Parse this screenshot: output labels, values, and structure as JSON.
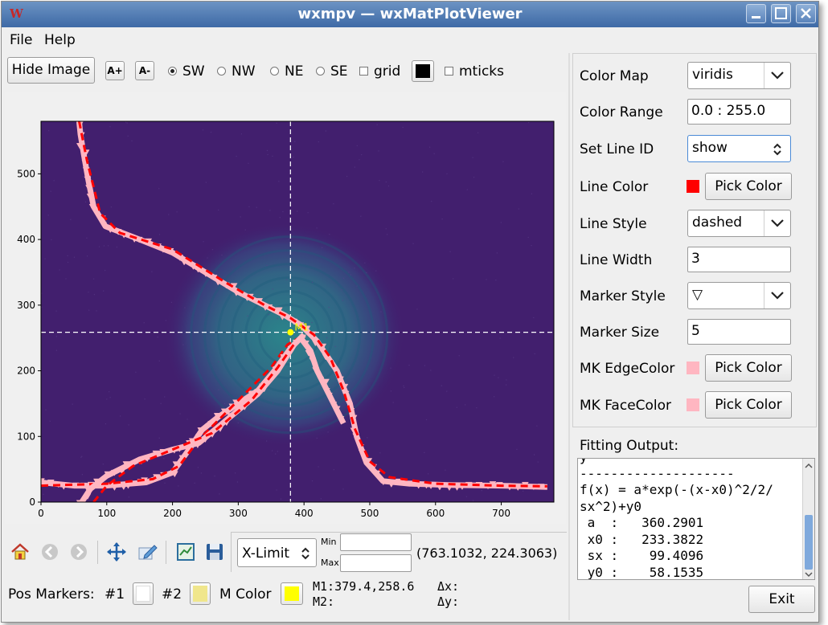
{
  "window": {
    "title": "wxmpv — wxMatPlotViewer",
    "app_icon": "W"
  },
  "menu": [
    "File",
    "Help"
  ],
  "toolbar": {
    "hide_image": "Hide Image",
    "font_up": "A+",
    "font_down": "A-",
    "origin_options": [
      {
        "label": "SW",
        "selected": true
      },
      {
        "label": "NW",
        "selected": false
      },
      {
        "label": "NE",
        "selected": false
      },
      {
        "label": "SE",
        "selected": false
      }
    ],
    "grid_label": "grid",
    "grid_checked": false,
    "grid_color": "#000000",
    "mticks_label": "mticks",
    "mticks_checked": false
  },
  "settings": {
    "color_map": {
      "label": "Color Map",
      "value": "viridis"
    },
    "color_range": {
      "label": "Color Range",
      "value": "0.0 : 255.0"
    },
    "set_line_id": {
      "label": "Set Line ID",
      "value": "show"
    },
    "line_color": {
      "label": "Line Color",
      "color": "#ff0000",
      "button": "Pick Color"
    },
    "line_style": {
      "label": "Line Style",
      "value": "dashed"
    },
    "line_width": {
      "label": "Line Width",
      "value": "3"
    },
    "marker_style": {
      "label": "Marker Style",
      "value": "▽"
    },
    "marker_size": {
      "label": "Marker Size",
      "value": "5"
    },
    "mk_edge_color": {
      "label": "MK EdgeColor",
      "color": "#ffb6c1",
      "button": "Pick Color"
    },
    "mk_face_color": {
      "label": "MK FaceColor",
      "color": "#ffb6c1",
      "button": "Pick Color"
    }
  },
  "fitting": {
    "label": "Fitting Output:",
    "lines": [
      "y",
      "--------------------",
      "f(x) = a*exp(-(x-x0)^2/2/",
      "sx^2)+y0",
      " a  :   360.2901",
      " x0 :   233.3822",
      " sx :    99.4096",
      " y0 :    58.1535"
    ]
  },
  "exit_button": "Exit",
  "nav": {
    "limit_select": "X-Limit",
    "min_label": "Min",
    "max_label": "Max",
    "min_value": "",
    "max_value": "",
    "cursor_pos": "(763.1032, 224.3063)"
  },
  "markers": {
    "label": "Pos Markers:",
    "m1_label": "#1",
    "m1_color": "#ffffff",
    "m2_label": "#2",
    "m2_color": "#f0e68c",
    "mcolor_label": "M Color",
    "mcolor": "#ffff00",
    "m1_text": "M1:379.4,258.6",
    "m2_text": "M2:",
    "dx_text": "Δx:",
    "dy_text": "Δy:",
    "plot_marker_label": "M1"
  },
  "chart_data": {
    "type": "image",
    "colormap": "viridis",
    "xlim": [
      0,
      780
    ],
    "ylim": [
      0,
      580
    ],
    "xticks": [
      0,
      100,
      200,
      300,
      400,
      500,
      600,
      700
    ],
    "yticks": [
      0,
      100,
      200,
      300,
      400,
      500
    ],
    "grid": false,
    "crosshair": {
      "x": 379.4,
      "y": 258.6
    },
    "marker_point": {
      "x": 379.4,
      "y": 258.6
    },
    "series": [
      {
        "role": "profile_falling",
        "points": [
          [
            58,
            580
          ],
          [
            60,
            560
          ],
          [
            65,
            530
          ],
          [
            72,
            490
          ],
          [
            80,
            450
          ],
          [
            98,
            420
          ],
          [
            150,
            400
          ],
          [
            200,
            380
          ],
          [
            250,
            350
          ],
          [
            300,
            320
          ],
          [
            340,
            300
          ],
          [
            370,
            285
          ],
          [
            395,
            270
          ],
          [
            420,
            245
          ],
          [
            450,
            200
          ],
          [
            470,
            150
          ],
          [
            480,
            100
          ],
          [
            495,
            60
          ],
          [
            520,
            32
          ],
          [
            560,
            28
          ],
          [
            620,
            26
          ],
          [
            700,
            25
          ],
          [
            770,
            23
          ]
        ],
        "fit": [
          [
            58,
            580
          ],
          [
            70,
            520
          ],
          [
            90,
            440
          ],
          [
            120,
            410
          ],
          [
            200,
            385
          ],
          [
            280,
            335
          ],
          [
            340,
            300
          ],
          [
            380,
            280
          ],
          [
            415,
            255
          ],
          [
            440,
            220
          ],
          [
            460,
            170
          ],
          [
            478,
            110
          ],
          [
            500,
            62
          ],
          [
            530,
            38
          ],
          [
            600,
            28
          ],
          [
            700,
            25
          ],
          [
            770,
            24
          ]
        ]
      },
      {
        "role": "profile_rising",
        "points": [
          [
            0,
            30
          ],
          [
            50,
            25
          ],
          [
            100,
            25
          ],
          [
            160,
            30
          ],
          [
            200,
            45
          ],
          [
            225,
            80
          ],
          [
            245,
            110
          ],
          [
            270,
            130
          ],
          [
            300,
            150
          ],
          [
            330,
            170
          ],
          [
            355,
            200
          ],
          [
            380,
            235
          ],
          [
            395,
            250
          ],
          [
            410,
            230
          ],
          [
            420,
            200
          ],
          [
            440,
            160
          ],
          [
            460,
            120
          ]
        ],
        "fit": [
          [
            0,
            25
          ],
          [
            100,
            28
          ],
          [
            170,
            35
          ],
          [
            210,
            55
          ],
          [
            240,
            95
          ],
          [
            280,
            135
          ],
          [
            320,
            175
          ],
          [
            350,
            205
          ],
          [
            375,
            240
          ],
          [
            392,
            250
          ]
        ]
      },
      {
        "role": "profile_diag",
        "points": [
          [
            62,
            0
          ],
          [
            75,
            20
          ],
          [
            100,
            40
          ],
          [
            150,
            65
          ],
          [
            200,
            80
          ],
          [
            240,
            90
          ],
          [
            270,
            115
          ],
          [
            300,
            140
          ],
          [
            330,
            165
          ],
          [
            360,
            200
          ],
          [
            385,
            240
          ],
          [
            400,
            255
          ]
        ],
        "fit": [
          [
            80,
            0
          ],
          [
            100,
            25
          ],
          [
            140,
            55
          ],
          [
            200,
            80
          ],
          [
            260,
            105
          ],
          [
            320,
            155
          ],
          [
            360,
            205
          ],
          [
            388,
            245
          ]
        ]
      }
    ]
  }
}
